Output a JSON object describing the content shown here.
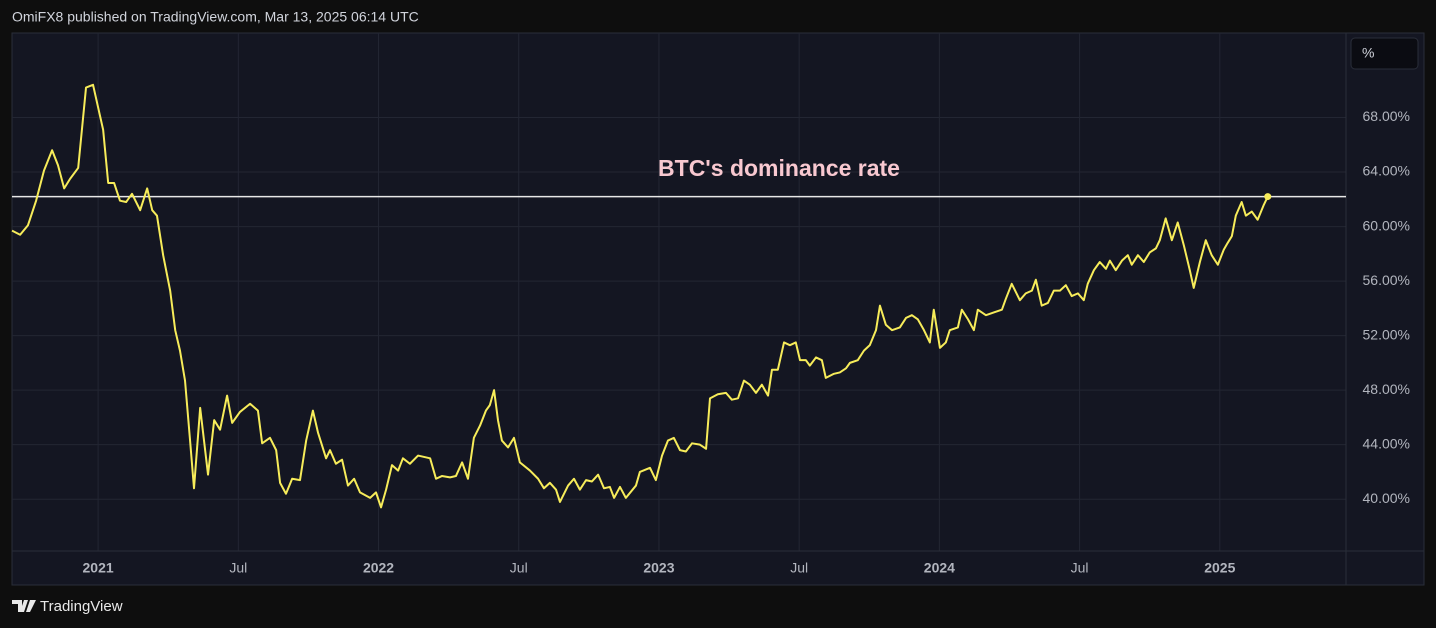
{
  "header": "OmiFX8 published on TradingView.com, Mar 13, 2025 06:14 UTC",
  "footer_brand": "TradingView",
  "scale_button": "%",
  "chart_data": {
    "type": "line",
    "annotation": "BTC's dominance rate",
    "color": "#f7ec5a",
    "horizontal_line": 62.2,
    "horizontal_line_color": "#e8e8e8",
    "grid": true,
    "xlim": [
      2020.693,
      2025.45
    ],
    "xticks": [
      2021,
      {
        "value": 2021.5,
        "label": "Jul"
      },
      2022,
      {
        "value": 2022.5,
        "label": "Jul"
      },
      2023,
      {
        "value": 2023.5,
        "label": "Jul"
      },
      2024,
      {
        "value": 2024.5,
        "label": "Jul"
      },
      2025
    ],
    "ylim": [
      36.2,
      74.2
    ],
    "yticks": [
      {
        "value": 40,
        "label": "40.00%"
      },
      {
        "value": 44,
        "label": "44.00%"
      },
      {
        "value": 48,
        "label": "48.00%"
      },
      {
        "value": 52,
        "label": "52.00%"
      },
      {
        "value": 56,
        "label": "56.00%"
      },
      {
        "value": 60,
        "label": "60.00%"
      },
      {
        "value": 64,
        "label": "64.00%"
      },
      {
        "value": 68,
        "label": "68.00%"
      }
    ],
    "x": [
      2020.693,
      2020.722,
      2020.75,
      2020.779,
      2020.807,
      2020.836,
      2020.857,
      2020.879,
      2020.9,
      2020.929,
      2020.957,
      2020.982,
      2021.018,
      2021.036,
      2021.057,
      2021.078,
      2021.1,
      2021.121,
      2021.15,
      2021.175,
      2021.193,
      2021.21,
      2021.232,
      2021.257,
      2021.275,
      2021.292,
      2021.31,
      2021.328,
      2021.342,
      2021.364,
      2021.392,
      2021.414,
      2021.435,
      2021.46,
      2021.478,
      2021.506,
      2021.542,
      2021.57,
      2021.585,
      2021.613,
      2021.635,
      2021.649,
      2021.67,
      2021.692,
      2021.72,
      2021.742,
      2021.766,
      2021.784,
      2021.813,
      2021.827,
      2021.848,
      2021.87,
      2021.891,
      2021.913,
      2021.934,
      2021.97,
      2021.991,
      2022.009,
      2022.027,
      2022.048,
      2022.07,
      2022.087,
      2022.112,
      2022.141,
      2022.184,
      2022.205,
      2022.226,
      2022.255,
      2022.276,
      2022.298,
      2022.319,
      2022.34,
      2022.362,
      2022.383,
      2022.397,
      2022.412,
      2022.426,
      2022.44,
      2022.462,
      2022.483,
      2022.504,
      2022.54,
      2022.569,
      2022.59,
      2022.611,
      2022.633,
      2022.647,
      2022.676,
      2022.697,
      2022.718,
      2022.74,
      2022.761,
      2022.783,
      2022.804,
      2022.825,
      2022.84,
      2022.861,
      2022.882,
      2022.918,
      2022.932,
      2022.968,
      2022.989,
      2023.011,
      2023.032,
      2023.053,
      2023.075,
      2023.096,
      2023.118,
      2023.146,
      2023.168,
      2023.182,
      2023.21,
      2023.239,
      2023.26,
      2023.282,
      2023.303,
      2023.324,
      2023.346,
      2023.367,
      2023.389,
      2023.403,
      2023.424,
      2023.446,
      2023.467,
      2023.488,
      2023.503,
      2023.524,
      2023.538,
      2023.56,
      2023.581,
      2023.595,
      2023.624,
      2023.645,
      2023.667,
      2023.681,
      2023.709,
      2023.731,
      2023.752,
      2023.774,
      2023.788,
      2023.809,
      2023.831,
      2023.859,
      2023.881,
      2023.902,
      2023.923,
      2023.945,
      2023.966,
      2023.98,
      2024.002,
      2024.023,
      2024.037,
      2024.066,
      2024.08,
      2024.102,
      2024.123,
      2024.137,
      2024.166,
      2024.194,
      2024.223,
      2024.237,
      2024.258,
      2024.287,
      2024.308,
      2024.33,
      2024.344,
      2024.365,
      2024.387,
      2024.408,
      2024.43,
      2024.451,
      2024.472,
      2024.494,
      2024.515,
      2024.529,
      2024.551,
      2024.572,
      2024.594,
      2024.608,
      2024.629,
      2024.651,
      2024.672,
      2024.686,
      2024.708,
      2024.729,
      2024.75,
      2024.772,
      2024.786,
      2024.807,
      2024.829,
      2024.85,
      2024.872,
      2024.893,
      2024.907,
      2024.929,
      2024.95,
      2024.971,
      2024.993,
      2025.014,
      2025.028,
      2025.043,
      2025.057,
      2025.078,
      2025.093,
      2025.114,
      2025.135,
      2025.157,
      2025.171
    ],
    "values": [
      59.7,
      59.4,
      60.1,
      61.9,
      64.1,
      65.6,
      64.5,
      62.8,
      63.5,
      64.3,
      70.2,
      70.4,
      67.1,
      63.2,
      63.2,
      61.9,
      61.8,
      62.4,
      61.2,
      62.8,
      61.2,
      60.8,
      57.9,
      55.3,
      52.4,
      50.9,
      48.7,
      44.3,
      40.8,
      46.7,
      41.8,
      45.8,
      45.1,
      47.6,
      45.6,
      46.4,
      47.0,
      46.5,
      44.1,
      44.5,
      43.6,
      41.2,
      40.4,
      41.5,
      41.4,
      44.3,
      46.5,
      44.9,
      43.0,
      43.6,
      42.6,
      42.9,
      41.0,
      41.5,
      40.5,
      40.1,
      40.5,
      39.4,
      40.7,
      42.5,
      42.1,
      43.0,
      42.6,
      43.2,
      43.0,
      41.5,
      41.7,
      41.6,
      41.7,
      42.7,
      41.5,
      44.5,
      45.4,
      46.5,
      46.9,
      48.0,
      45.8,
      44.3,
      43.8,
      44.5,
      42.7,
      42.1,
      41.5,
      40.8,
      41.2,
      40.7,
      39.8,
      41.0,
      41.5,
      40.7,
      41.4,
      41.3,
      41.8,
      40.8,
      40.9,
      40.1,
      40.9,
      40.1,
      41.0,
      42.0,
      42.3,
      41.4,
      43.2,
      44.3,
      44.5,
      43.6,
      43.5,
      44.1,
      44.0,
      43.7,
      47.4,
      47.7,
      47.8,
      47.3,
      47.4,
      48.7,
      48.4,
      47.8,
      48.4,
      47.6,
      49.5,
      49.5,
      51.5,
      51.3,
      51.5,
      50.2,
      50.2,
      49.8,
      50.4,
      50.2,
      48.9,
      49.2,
      49.3,
      49.6,
      50.0,
      50.2,
      50.9,
      51.3,
      52.4,
      54.2,
      52.8,
      52.4,
      52.6,
      53.3,
      53.5,
      53.2,
      52.4,
      51.5,
      53.9,
      51.1,
      51.5,
      52.4,
      52.6,
      53.9,
      53.2,
      52.4,
      53.9,
      53.5,
      53.7,
      53.9,
      54.7,
      55.8,
      54.6,
      55.1,
      55.3,
      56.1,
      54.2,
      54.4,
      55.3,
      55.3,
      55.7,
      54.9,
      55.1,
      54.6,
      55.8,
      56.8,
      57.4,
      56.9,
      57.5,
      56.8,
      57.5,
      57.9,
      57.2,
      57.9,
      57.4,
      58.1,
      58.4,
      59.0,
      60.6,
      59.0,
      60.3,
      58.6,
      56.8,
      55.5,
      57.4,
      59.0,
      57.9,
      57.2,
      58.3,
      58.8,
      59.3,
      60.8,
      61.8,
      60.8,
      61.1,
      60.5,
      61.6,
      62.2
    ]
  }
}
